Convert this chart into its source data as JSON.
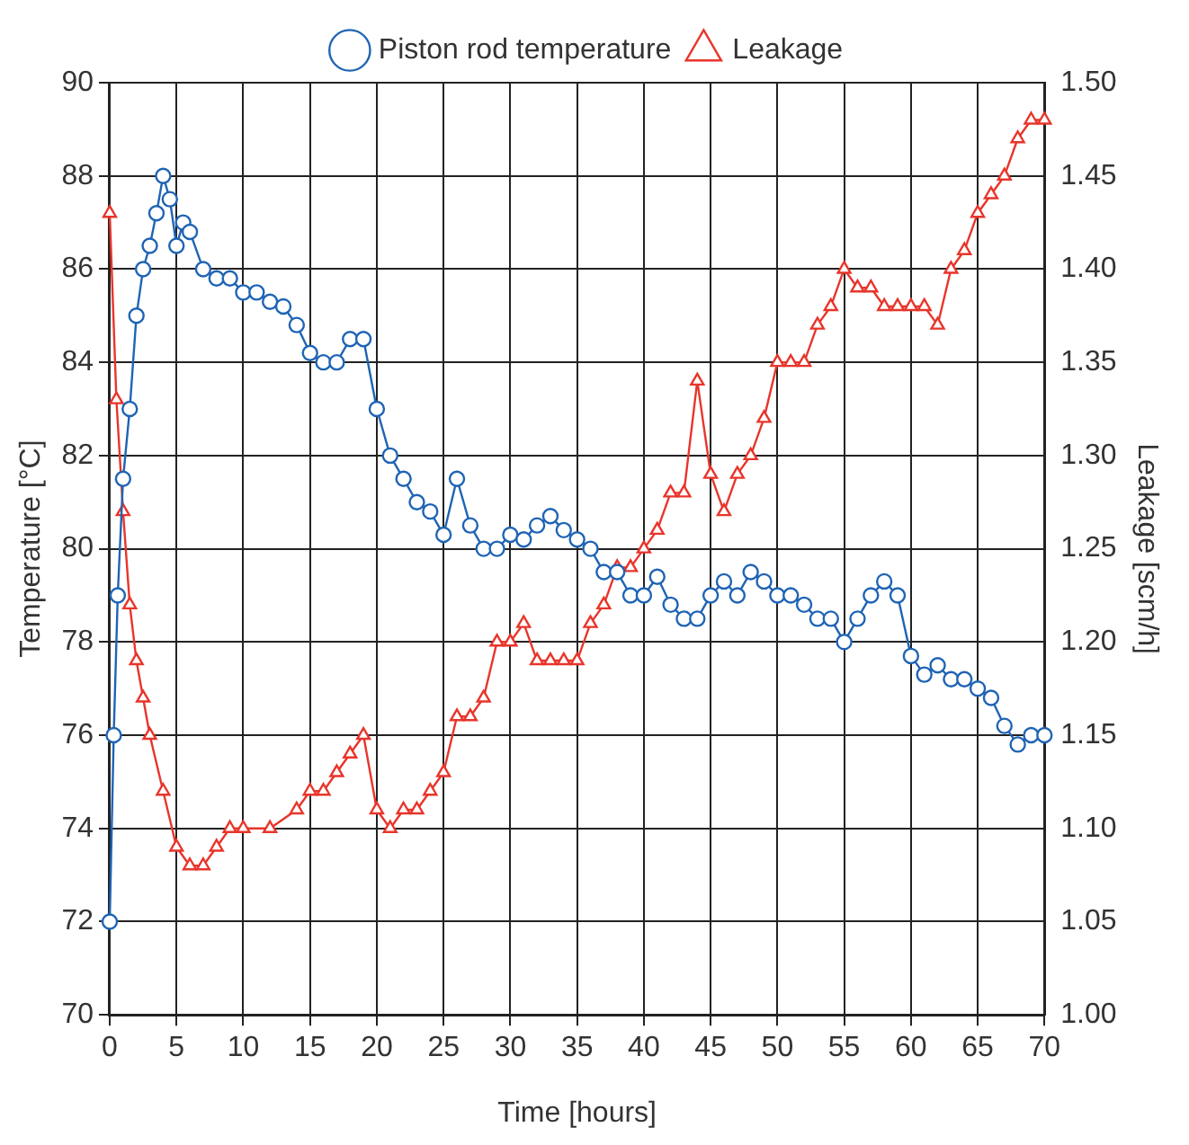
{
  "chart_data": {
    "type": "line",
    "xlabel": "Time [hours]",
    "ylabel": "Temperature [°C]",
    "y2label": "Leakage [scm/h]",
    "xlim": [
      0,
      70
    ],
    "xticks": [
      0,
      5,
      10,
      15,
      20,
      25,
      30,
      35,
      40,
      45,
      50,
      55,
      60,
      65,
      70
    ],
    "ylim": [
      70,
      90
    ],
    "yticks": [
      70,
      72,
      74,
      76,
      78,
      80,
      82,
      84,
      86,
      88,
      90
    ],
    "y2lim": [
      1.0,
      1.5
    ],
    "y2ticks": [
      {
        "value": 1.0,
        "label": "1.00"
      },
      {
        "value": 1.05,
        "label": "1.05"
      },
      {
        "value": 1.1,
        "label": "1.10"
      },
      {
        "value": 1.15,
        "label": "1.15"
      },
      {
        "value": 1.2,
        "label": "1.20"
      },
      {
        "value": 1.25,
        "label": "1.25"
      },
      {
        "value": 1.3,
        "label": "1.30"
      },
      {
        "value": 1.35,
        "label": "1.35"
      },
      {
        "value": 1.4,
        "label": "1.40"
      },
      {
        "value": 1.45,
        "label": "1.45"
      },
      {
        "value": 1.5,
        "label": "1.50"
      }
    ],
    "grid": true,
    "legend": "top",
    "line_style": "solid",
    "series": [
      {
        "name": "Piston rod temperature",
        "color": "#1f64b4",
        "marker": "circle",
        "x": [
          0,
          0.3,
          0.6,
          1,
          1.5,
          2,
          2.5,
          3,
          3.5,
          4,
          4.5,
          5,
          5.5,
          6,
          7,
          8,
          9,
          10,
          11,
          12,
          13,
          14,
          15,
          16,
          17,
          18,
          19,
          20,
          21,
          22,
          23,
          24,
          25,
          26,
          27,
          28,
          29,
          30,
          31,
          32,
          33,
          34,
          35,
          36,
          37,
          38,
          39,
          40,
          41,
          42,
          43,
          44,
          45,
          46,
          47,
          48,
          49,
          50,
          51,
          52,
          53,
          54,
          55,
          56,
          57,
          58,
          59,
          60,
          61,
          62,
          63,
          64,
          65,
          66,
          67,
          68,
          69,
          70
        ],
        "values": [
          72,
          76,
          79,
          81.5,
          83,
          85,
          86,
          86.5,
          87.2,
          88,
          87.5,
          86.5,
          87,
          86.8,
          86,
          85.8,
          85.8,
          85.5,
          85.5,
          85.3,
          85.2,
          84.8,
          84.2,
          84,
          84,
          84.5,
          84.5,
          83,
          82,
          81.5,
          81,
          80.8,
          80.3,
          81.5,
          80.5,
          80,
          80,
          80.3,
          80.2,
          80.5,
          80.7,
          80.4,
          80.2,
          80,
          79.5,
          79.5,
          79,
          79,
          79.4,
          78.8,
          78.5,
          78.5,
          79,
          79.3,
          79,
          79.5,
          79.3,
          79,
          79,
          78.8,
          78.5,
          78.5,
          78,
          78.5,
          79,
          79.3,
          79,
          77.7,
          77.3,
          77.5,
          77.2,
          77.2,
          77,
          76.8,
          76.2,
          75.8,
          76,
          76
        ]
      },
      {
        "name": "Leakage",
        "color": "#e8352b",
        "marker": "triangle",
        "axis": "y2",
        "x": [
          0,
          0.5,
          1,
          1.5,
          2,
          2.5,
          3,
          4,
          5,
          6,
          7,
          8,
          9,
          10,
          12,
          14,
          15,
          16,
          17,
          18,
          19,
          20,
          21,
          22,
          23,
          24,
          25,
          26,
          27,
          28,
          29,
          30,
          31,
          32,
          33,
          34,
          35,
          36,
          37,
          38,
          39,
          40,
          41,
          42,
          43,
          44,
          45,
          46,
          47,
          48,
          49,
          50,
          51,
          52,
          53,
          54,
          55,
          56,
          57,
          58,
          59,
          60,
          61,
          62,
          63,
          64,
          65,
          66,
          67,
          68,
          69,
          70
        ],
        "values": [
          1.43,
          1.33,
          1.27,
          1.22,
          1.19,
          1.17,
          1.15,
          1.12,
          1.09,
          1.08,
          1.08,
          1.09,
          1.1,
          1.1,
          1.1,
          1.11,
          1.12,
          1.12,
          1.13,
          1.14,
          1.15,
          1.11,
          1.1,
          1.11,
          1.11,
          1.12,
          1.13,
          1.16,
          1.16,
          1.17,
          1.2,
          1.2,
          1.21,
          1.19,
          1.19,
          1.19,
          1.19,
          1.21,
          1.22,
          1.24,
          1.24,
          1.25,
          1.26,
          1.28,
          1.28,
          1.34,
          1.29,
          1.27,
          1.29,
          1.3,
          1.32,
          1.35,
          1.35,
          1.35,
          1.37,
          1.38,
          1.4,
          1.39,
          1.39,
          1.38,
          1.38,
          1.38,
          1.38,
          1.37,
          1.4,
          1.41,
          1.43,
          1.44,
          1.45,
          1.47,
          1.48,
          1.48
        ]
      }
    ]
  }
}
